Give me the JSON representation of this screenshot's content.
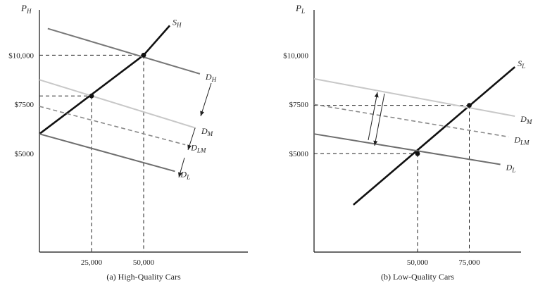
{
  "chart_data": [
    {
      "type": "line",
      "caption": "(a) High-Quality Cars",
      "ylabel": "P_H",
      "xlim": [
        0,
        100000
      ],
      "ylim": [
        0,
        12300
      ],
      "x_ticks": [
        {
          "value": 25000,
          "label": "25,000"
        },
        {
          "value": 50000,
          "label": "50,000"
        }
      ],
      "y_ticks": [
        {
          "value": 10000,
          "label": "$10,000"
        },
        {
          "value": 7500,
          "label": "$7500"
        },
        {
          "value": 5000,
          "label": "$5000"
        }
      ],
      "series": [
        {
          "name": "S_H",
          "color": "#111111",
          "width": 2.6,
          "dash": false,
          "points": [
            [
              0,
              6000
            ],
            [
              50000,
              10000
            ],
            [
              62500,
              11500
            ]
          ]
        },
        {
          "name": "D_H",
          "color": "#777777",
          "width": 2,
          "dash": false,
          "points": [
            [
              4000,
              11350
            ],
            [
              77000,
              9050
            ]
          ]
        },
        {
          "name": "D_M",
          "color": "#c8c8c8",
          "width": 2,
          "dash": false,
          "points": [
            [
              0,
              8750
            ],
            [
              75000,
              6300
            ]
          ]
        },
        {
          "name": "D_LM",
          "color": "#8a8a8a",
          "width": 1.6,
          "dash": true,
          "points": [
            [
              0,
              7400
            ],
            [
              70000,
              5450
            ]
          ]
        },
        {
          "name": "D_L",
          "color": "#6e6e6e",
          "width": 2,
          "dash": false,
          "points": [
            [
              0,
              6000
            ],
            [
              65000,
              4100
            ]
          ]
        }
      ],
      "points": [
        {
          "x": 50000,
          "y": 10000
        },
        {
          "x": 25000,
          "y": 7930
        }
      ],
      "guides": [
        {
          "x": 50000,
          "y": 10000
        },
        {
          "x": 25000,
          "y": 7930
        }
      ]
    },
    {
      "type": "line",
      "caption": "(b) Low-Quality Cars",
      "ylabel": "P_L",
      "xlim": [
        0,
        100000
      ],
      "ylim": [
        0,
        12300
      ],
      "x_ticks": [
        {
          "value": 50000,
          "label": "50,000"
        },
        {
          "value": 75000,
          "label": "75,000"
        }
      ],
      "y_ticks": [
        {
          "value": 10000,
          "label": "$10,000"
        },
        {
          "value": 7500,
          "label": "$7500"
        },
        {
          "value": 5000,
          "label": "$5000"
        }
      ],
      "series": [
        {
          "name": "S_L",
          "color": "#111111",
          "width": 2.6,
          "dash": false,
          "points": [
            [
              19000,
              2400
            ],
            [
              97000,
              9400
            ]
          ]
        },
        {
          "name": "D_M",
          "color": "#c8c8c8",
          "width": 2,
          "dash": false,
          "points": [
            [
              0,
              8800
            ],
            [
              97000,
              6900
            ]
          ]
        },
        {
          "name": "D_LM",
          "color": "#8a8a8a",
          "width": 1.6,
          "dash": true,
          "points": [
            [
              0,
              7500
            ],
            [
              94000,
              5850
            ]
          ]
        },
        {
          "name": "D_L",
          "color": "#6e6e6e",
          "width": 2,
          "dash": false,
          "points": [
            [
              0,
              6000
            ],
            [
              90000,
              4450
            ]
          ]
        }
      ],
      "points": [
        {
          "x": 50000,
          "y": 5000
        },
        {
          "x": 75000,
          "y": 7450
        }
      ],
      "guides": [
        {
          "x": 50000,
          "y": 5000
        },
        {
          "x": 75000,
          "y": 7450
        }
      ]
    }
  ]
}
